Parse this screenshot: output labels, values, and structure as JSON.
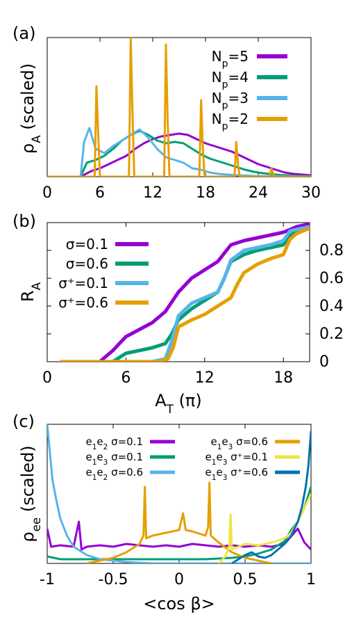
{
  "chart_data": [
    {
      "panel_label": "(a)",
      "type": "line",
      "xlabel": "",
      "ylabel": "ρ_A (scaled)",
      "ylabel_parts": [
        "ρ",
        "A",
        " (scaled)"
      ],
      "xlim": [
        0,
        30
      ],
      "ylim": [
        0,
        1
      ],
      "xticks": [
        0,
        6,
        12,
        18,
        24,
        30
      ],
      "yticks_shown": false,
      "legend_placement": "top-right",
      "series": [
        {
          "name": "N_p=5",
          "label_parts": [
            "N",
            "p",
            "=5"
          ],
          "color": "#9400d3",
          "x": [
            3.8,
            5,
            6,
            7,
            8,
            9,
            10,
            11,
            12,
            13,
            14,
            15,
            16,
            17,
            18,
            19,
            20,
            21,
            22,
            23,
            24,
            25,
            26,
            27,
            28,
            29,
            30
          ],
          "y": [
            0.0,
            0.04,
            0.06,
            0.09,
            0.12,
            0.15,
            0.2,
            0.24,
            0.27,
            0.29,
            0.3,
            0.31,
            0.3,
            0.27,
            0.24,
            0.22,
            0.2,
            0.18,
            0.15,
            0.12,
            0.09,
            0.07,
            0.05,
            0.03,
            0.02,
            0.015,
            0.01
          ]
        },
        {
          "name": "N_p=4",
          "label_parts": [
            "N",
            "p",
            "=4"
          ],
          "color": "#009e73",
          "x": [
            3.8,
            4.5,
            5.5,
            6.5,
            7.5,
            8.5,
            9.5,
            10.5,
            11.5,
            12.5,
            13.5,
            14.5,
            15.5,
            16.5,
            17.5,
            18.5,
            19.5,
            20.5,
            21.5,
            22.5,
            23.5,
            24.5,
            25.5,
            26.5,
            27.5,
            28.5,
            30
          ],
          "y": [
            0.0,
            0.1,
            0.12,
            0.15,
            0.2,
            0.26,
            0.3,
            0.33,
            0.3,
            0.26,
            0.24,
            0.25,
            0.24,
            0.2,
            0.16,
            0.13,
            0.11,
            0.09,
            0.07,
            0.05,
            0.035,
            0.025,
            0.018,
            0.012,
            0.008,
            0.005,
            0.003
          ]
        },
        {
          "name": "N_p=3",
          "label_parts": [
            "N",
            "p",
            "=3"
          ],
          "color": "#56b4e9",
          "x": [
            3.8,
            4.2,
            4.8,
            5.5,
            6.5,
            7.5,
            8.5,
            9.5,
            10.5,
            11.5,
            12.5,
            13.5,
            14.5,
            15.5,
            16.5,
            17.5,
            18.5,
            19.5,
            20.5,
            21.5,
            22.5,
            23.5,
            24.5,
            25.5,
            26.5,
            28,
            30
          ],
          "y": [
            0.0,
            0.25,
            0.35,
            0.2,
            0.17,
            0.22,
            0.26,
            0.3,
            0.34,
            0.28,
            0.2,
            0.14,
            0.12,
            0.1,
            0.06,
            0.05,
            0.03,
            0.02,
            0.015,
            0.01,
            0.008,
            0.005,
            0.004,
            0.003,
            0.002,
            0.001,
            0.0
          ]
        },
        {
          "name": "N_p=2",
          "label_parts": [
            "N",
            "p",
            "=2"
          ],
          "color": "#e69f00",
          "x": [
            0,
            5.4,
            5.6,
            5.8,
            6.0,
            9.3,
            9.5,
            9.7,
            9.9,
            13.3,
            13.5,
            13.7,
            13.9,
            17.3,
            17.5,
            17.7,
            17.9,
            21.3,
            21.5,
            21.7,
            21.9,
            25.3,
            25.5,
            25.7,
            25.9,
            30
          ],
          "y": [
            0.0,
            0.0,
            0.65,
            0.3,
            0.0,
            0.0,
            1.0,
            0.45,
            0.0,
            0.0,
            0.95,
            0.4,
            0.0,
            0.0,
            0.55,
            0.2,
            0.0,
            0.0,
            0.25,
            0.08,
            0.0,
            0.0,
            0.06,
            0.02,
            0.0,
            0.0
          ]
        }
      ]
    },
    {
      "panel_label": "(b)",
      "type": "line",
      "xlabel": "A_T (π)",
      "xlabel_parts": [
        "A",
        "T",
        " (π)"
      ],
      "ylabel": "R_A",
      "ylabel_parts": [
        "R",
        "A"
      ],
      "xlim": [
        0,
        20
      ],
      "ylim": [
        0,
        1
      ],
      "xticks": [
        0,
        6,
        12,
        18
      ],
      "yticks": [
        "0",
        "0.2",
        "0.4",
        "0.6",
        "0.8"
      ],
      "ytick_values": [
        0,
        0.2,
        0.4,
        0.6,
        0.8
      ],
      "ytick_side": "right",
      "legend_placement": "top-left",
      "series": [
        {
          "name": "σ=0.1",
          "color": "#9400d3",
          "x": [
            1,
            4,
            4.5,
            5,
            5.5,
            6,
            7,
            8,
            9,
            10,
            11,
            12,
            12.5,
            13,
            13.5,
            14,
            15,
            16,
            17,
            18,
            19,
            20
          ],
          "y": [
            0.0,
            0.0,
            0.04,
            0.08,
            0.13,
            0.18,
            0.23,
            0.28,
            0.36,
            0.5,
            0.6,
            0.66,
            0.69,
            0.72,
            0.78,
            0.84,
            0.87,
            0.89,
            0.91,
            0.93,
            0.97,
            0.99
          ]
        },
        {
          "name": "σ=0.6",
          "color": "#009e73",
          "x": [
            1,
            5,
            5.5,
            6,
            7,
            8,
            9,
            9.5,
            10,
            11,
            12,
            13,
            13.5,
            14,
            15,
            16,
            17,
            18,
            18.5,
            20
          ],
          "y": [
            0.0,
            0.0,
            0.03,
            0.06,
            0.08,
            0.1,
            0.13,
            0.2,
            0.3,
            0.38,
            0.44,
            0.5,
            0.6,
            0.72,
            0.77,
            0.8,
            0.82,
            0.84,
            0.91,
            0.97
          ]
        },
        {
          "name": "σ⁺=0.1",
          "color": "#56b4e9",
          "x": [
            1,
            8,
            9,
            9.5,
            10,
            11,
            12,
            13,
            13.5,
            14,
            15,
            16,
            17,
            18,
            18.5,
            20
          ],
          "y": [
            0.0,
            0.0,
            0.02,
            0.15,
            0.33,
            0.42,
            0.46,
            0.5,
            0.6,
            0.73,
            0.8,
            0.82,
            0.84,
            0.87,
            0.94,
            0.97
          ]
        },
        {
          "name": "σ⁺=0.6",
          "color": "#e69f00",
          "x": [
            1,
            8.5,
            9.2,
            9.6,
            10,
            11,
            12,
            13,
            14,
            14.5,
            15,
            16,
            17,
            18,
            18.5,
            19,
            20
          ],
          "y": [
            0.0,
            0.0,
            0.02,
            0.1,
            0.25,
            0.3,
            0.34,
            0.4,
            0.46,
            0.56,
            0.64,
            0.7,
            0.74,
            0.77,
            0.88,
            0.92,
            0.96
          ]
        }
      ]
    },
    {
      "panel_label": "(c)",
      "type": "line",
      "xlabel": "<cos β>",
      "ylabel": "ρ_ee (scaled)",
      "ylabel_parts": [
        "ρ",
        "ee",
        " (scaled)"
      ],
      "xlim": [
        -1,
        1
      ],
      "ylim": [
        0,
        1
      ],
      "xticks": [
        "-1",
        "-0.5",
        "0",
        "0.5",
        "1"
      ],
      "xtick_values": [
        -1,
        -0.5,
        0,
        0.5,
        1
      ],
      "yticks_shown": false,
      "legend_placement": "top (two columns)",
      "series": [
        {
          "name": "e1e2 σ=0.1",
          "label_parts": [
            "e",
            "1",
            "e",
            "2",
            " σ=0.1"
          ],
          "color": "#9400d3",
          "x": [
            -1,
            -0.97,
            -0.9,
            -0.8,
            -0.76,
            -0.74,
            -0.7,
            -0.6,
            -0.5,
            -0.4,
            -0.3,
            -0.2,
            -0.1,
            0,
            0.1,
            0.2,
            0.3,
            0.4,
            0.5,
            0.6,
            0.7,
            0.8,
            0.9,
            0.95,
            1
          ],
          "y": [
            0.25,
            0.12,
            0.13,
            0.12,
            0.3,
            0.1,
            0.12,
            0.13,
            0.12,
            0.14,
            0.13,
            0.12,
            0.13,
            0.12,
            0.14,
            0.13,
            0.12,
            0.13,
            0.12,
            0.13,
            0.12,
            0.14,
            0.25,
            0.15,
            0.1
          ]
        },
        {
          "name": "e1e3 σ=0.1",
          "label_parts": [
            "e",
            "1",
            "e",
            "3",
            " σ=0.1"
          ],
          "color": "#009e73",
          "x": [
            -1,
            -0.9,
            -0.8,
            -0.6,
            -0.4,
            -0.2,
            0,
            0.2,
            0.4,
            0.5,
            0.6,
            0.7,
            0.8,
            0.85,
            0.9,
            0.95,
            1
          ],
          "y": [
            0.05,
            0.03,
            0.03,
            0.03,
            0.03,
            0.03,
            0.03,
            0.03,
            0.04,
            0.05,
            0.07,
            0.1,
            0.16,
            0.24,
            0.3,
            0.4,
            0.55
          ]
        },
        {
          "name": "e1e2 σ=0.6",
          "label_parts": [
            "e",
            "1",
            "e",
            "2",
            " σ=0.6"
          ],
          "color": "#56b4e9",
          "x": [
            -1,
            -0.98,
            -0.96,
            -0.93,
            -0.9,
            -0.85,
            -0.8,
            -0.7,
            -0.6,
            -0.5,
            -0.4,
            -0.3,
            -0.2,
            -0.1,
            0,
            0.2,
            0.4,
            0.6,
            0.8,
            1
          ],
          "y": [
            1.0,
            0.8,
            0.6,
            0.45,
            0.32,
            0.2,
            0.12,
            0.06,
            0.03,
            0.02,
            0.01,
            0.005,
            0.0,
            0.0,
            0.0,
            0.0,
            0.0,
            0.0,
            0.0,
            0.0
          ]
        },
        {
          "name": "e1e3 σ=0.6",
          "label_parts": [
            "e",
            "1",
            "e",
            "3",
            " σ=0.6"
          ],
          "color": "#e69f00",
          "x": [
            -0.7,
            -0.6,
            -0.5,
            -0.4,
            -0.3,
            -0.27,
            -0.26,
            -0.25,
            -0.2,
            -0.1,
            -0.05,
            0,
            0.03,
            0.05,
            0.1,
            0.2,
            0.22,
            0.23,
            0.24,
            0.3,
            0.4,
            0.5,
            0.6,
            0.7
          ],
          "y": [
            0.0,
            0.02,
            0.04,
            0.08,
            0.14,
            0.2,
            0.55,
            0.18,
            0.2,
            0.22,
            0.23,
            0.24,
            0.36,
            0.24,
            0.23,
            0.2,
            0.26,
            0.58,
            0.2,
            0.15,
            0.08,
            0.04,
            0.02,
            0.0
          ]
        },
        {
          "name": "e1e3 σ⁺=0.1",
          "label_parts": [
            "e",
            "1",
            "e",
            "3",
            " σ⁺=0.1"
          ],
          "color": "#f0e442",
          "x": [
            0.3,
            0.35,
            0.38,
            0.39,
            0.4,
            0.45,
            0.5,
            0.6,
            0.7,
            0.8,
            0.85,
            0.9,
            0.95,
            1
          ],
          "y": [
            0.0,
            0.05,
            0.12,
            0.35,
            0.1,
            0.12,
            0.14,
            0.13,
            0.15,
            0.18,
            0.22,
            0.3,
            0.4,
            0.5
          ]
        },
        {
          "name": "e1e3 σ⁺=0.6",
          "label_parts": [
            "e",
            "1",
            "e",
            "3",
            " σ⁺=0.6"
          ],
          "color": "#0072b2",
          "x": [
            0.4,
            0.45,
            0.5,
            0.55,
            0.6,
            0.65,
            0.7,
            0.75,
            0.8,
            0.85,
            0.9,
            0.93,
            0.96,
            0.98,
            1
          ],
          "y": [
            0.0,
            0.03,
            0.06,
            0.08,
            0.05,
            0.04,
            0.06,
            0.1,
            0.14,
            0.2,
            0.3,
            0.4,
            0.55,
            0.7,
            0.95
          ]
        }
      ]
    }
  ]
}
